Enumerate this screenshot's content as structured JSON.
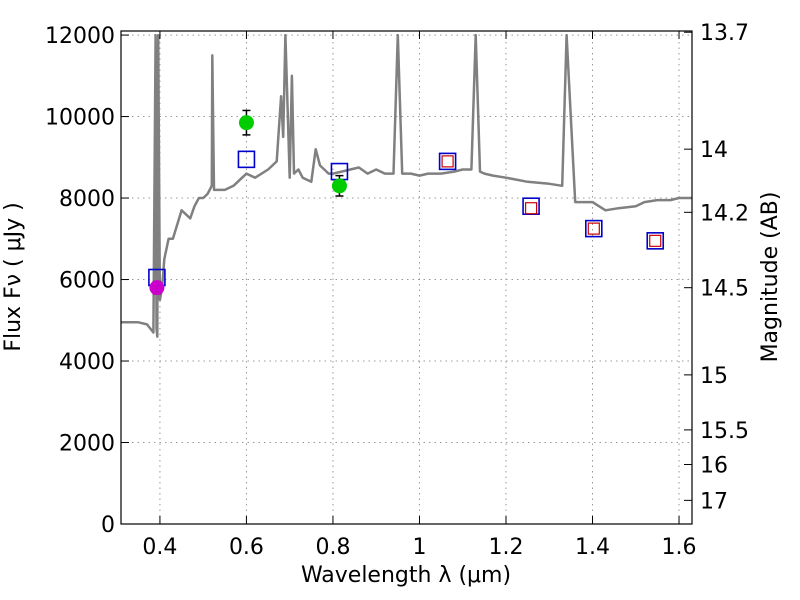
{
  "chart_data": {
    "type": "scatter",
    "xlabel": "Wavelength  λ (μm)",
    "ylabel": "Flux  Fν  ( μJy )",
    "ylabel_right": "Magnitude (AB)",
    "xlim": [
      0.31,
      1.63
    ],
    "ylim": [
      0,
      12100
    ],
    "grid": true,
    "x_ticks": [
      0.4,
      0.6,
      0.8,
      1.0,
      1.2,
      1.4,
      1.6
    ],
    "x_tick_labels": [
      "0.4",
      "0.6",
      "0.8",
      "1",
      "1.2",
      "1.4",
      "1.6"
    ],
    "y_ticks": [
      0,
      2000,
      4000,
      6000,
      8000,
      10000,
      12000
    ],
    "y_tick_labels": [
      "0",
      "2000",
      "4000",
      "6000",
      "8000",
      "10000",
      "12000"
    ],
    "right_ticks": [
      {
        "label": "13.7",
        "flux": 12070
      },
      {
        "label": "14",
        "flux": 9200
      },
      {
        "label": "14.2",
        "flux": 7650
      },
      {
        "label": "14.5",
        "flux": 5800
      },
      {
        "label": "15",
        "flux": 3660
      },
      {
        "label": "15.5",
        "flux": 2310
      },
      {
        "label": "16",
        "flux": 1460
      },
      {
        "label": "17",
        "flux": 580
      }
    ],
    "colors": {
      "spectrum": "#808080",
      "model_box": "#0000cc",
      "observed_box": "#cc0000",
      "green_point": "#00cc00",
      "magenta_point": "#cc00cc",
      "errorbar": "#000000",
      "grid": "#999999"
    },
    "series": [
      {
        "name": "spectrum",
        "type": "line",
        "x": [
          0.31,
          0.33,
          0.35,
          0.37,
          0.385,
          0.39,
          0.392,
          0.394,
          0.396,
          0.4,
          0.405,
          0.41,
          0.42,
          0.43,
          0.45,
          0.46,
          0.47,
          0.48,
          0.49,
          0.5,
          0.51,
          0.52,
          0.521,
          0.525,
          0.53,
          0.55,
          0.57,
          0.59,
          0.6,
          0.62,
          0.65,
          0.66,
          0.67,
          0.68,
          0.685,
          0.69,
          0.7,
          0.705,
          0.71,
          0.72,
          0.73,
          0.75,
          0.76,
          0.77,
          0.78,
          0.79,
          0.8,
          0.82,
          0.84,
          0.86,
          0.88,
          0.9,
          0.92,
          0.94,
          0.95,
          0.96,
          0.97,
          0.98,
          1.0,
          1.02,
          1.05,
          1.08,
          1.1,
          1.12,
          1.13,
          1.14,
          1.15,
          1.17,
          1.2,
          1.25,
          1.3,
          1.33,
          1.34,
          1.36,
          1.4,
          1.43,
          1.46,
          1.5,
          1.52,
          1.55,
          1.58,
          1.6,
          1.63
        ],
        "y": [
          4950,
          4950,
          4950,
          4900,
          4700,
          12000,
          4800,
          4600,
          12000,
          5500,
          5800,
          6500,
          7000,
          7000,
          7700,
          7600,
          7500,
          7800,
          8000,
          8000,
          8100,
          8300,
          11500,
          8200,
          8200,
          8200,
          8300,
          8500,
          8600,
          8500,
          8700,
          8800,
          8900,
          10500,
          9500,
          12000,
          8500,
          11000,
          8600,
          8700,
          8500,
          8400,
          9200,
          8800,
          8700,
          8600,
          8600,
          8650,
          8700,
          8750,
          8600,
          8700,
          8600,
          8600,
          12000,
          8600,
          8600,
          8600,
          8550,
          8600,
          8600,
          8650,
          8700,
          8700,
          12000,
          8650,
          8600,
          8550,
          8500,
          8400,
          8350,
          8300,
          12000,
          7900,
          7900,
          7700,
          7750,
          7800,
          7900,
          7950,
          7950,
          8000,
          8000
        ]
      },
      {
        "name": "model_photometry",
        "type": "scatter",
        "marker": "open-square",
        "x": [
          0.393,
          0.6,
          0.815,
          1.065,
          1.258,
          1.403,
          1.545
        ],
        "y": [
          6050,
          8950,
          8650,
          8900,
          7800,
          7250,
          6950
        ]
      },
      {
        "name": "observed_photometry_red",
        "type": "scatter",
        "marker": "open-square-small",
        "x": [
          1.065,
          1.258,
          1.403,
          1.545
        ],
        "y": [
          8900,
          7750,
          7250,
          6950
        ]
      },
      {
        "name": "observed_photometry_green",
        "type": "scatter",
        "marker": "filled-circle",
        "x": [
          0.6,
          0.815
        ],
        "y": [
          9850,
          8300
        ],
        "yerr": [
          300,
          250
        ]
      },
      {
        "name": "observed_photometry_magenta",
        "type": "scatter",
        "marker": "filled-circle",
        "x": [
          0.393
        ],
        "y": [
          5800
        ],
        "yerr": [
          150
        ]
      }
    ]
  }
}
